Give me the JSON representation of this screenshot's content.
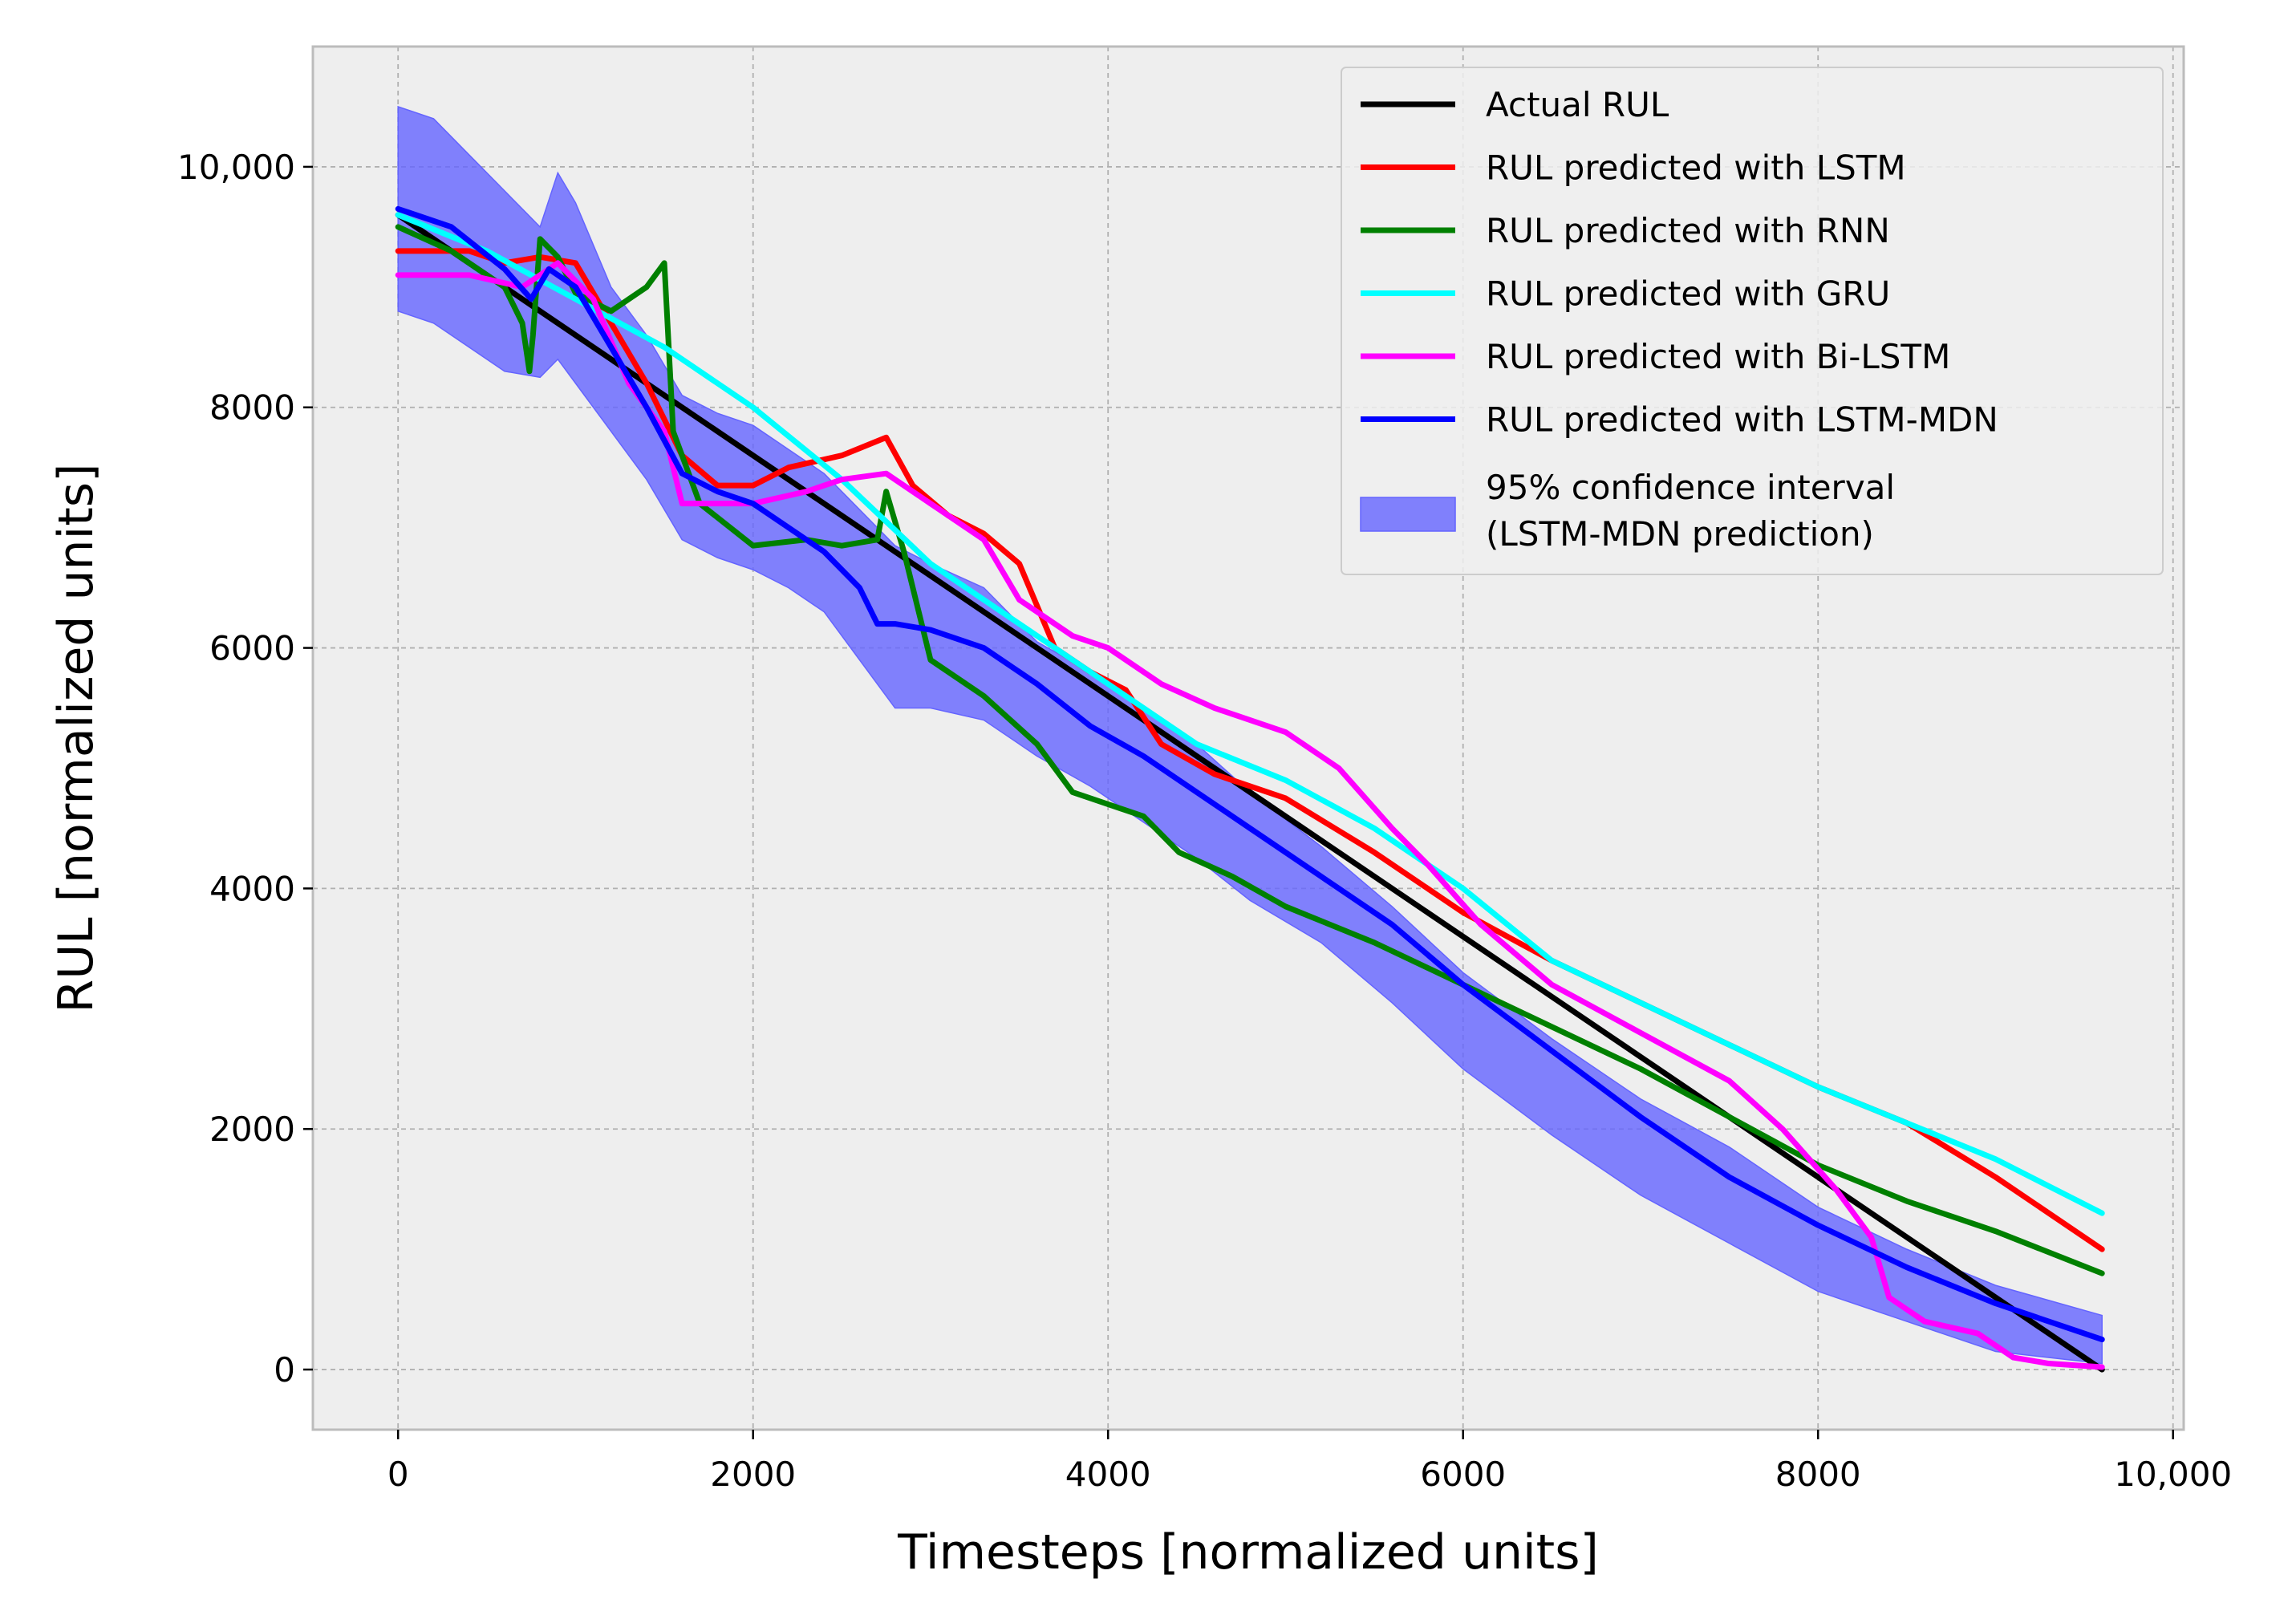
{
  "chart_data": {
    "type": "line",
    "title": "",
    "xlabel": "Timesteps [normalized units]",
    "ylabel": "RUL [normalized units]",
    "xlim": [
      -480,
      10060
    ],
    "ylim": [
      -500,
      11000
    ],
    "grid": true,
    "legend_position": "top-right",
    "x_ticks": [
      0,
      2000,
      4000,
      6000,
      8000,
      10000
    ],
    "x_tick_labels": [
      "0",
      "2000",
      "4000",
      "6000",
      "8000",
      "10,000"
    ],
    "y_ticks": [
      0,
      2000,
      4000,
      6000,
      8000,
      10000
    ],
    "y_tick_labels": [
      "0",
      "2000",
      "4000",
      "6000",
      "8000",
      "10,000"
    ],
    "colors": {
      "background": "#eeeeee",
      "axes_edge": "#bcbcbc",
      "band": "#7a7aff"
    },
    "series": [
      {
        "name": "Actual RUL",
        "color": "#000000",
        "x": [
          0,
          9600
        ],
        "y": [
          9600,
          0
        ]
      },
      {
        "name": "RUL predicted with LSTM",
        "color": "#ff0000",
        "x": [
          0,
          400,
          600,
          800,
          1000,
          1200,
          1400,
          1600,
          1800,
          2000,
          2200,
          2500,
          2750,
          2900,
          3100,
          3300,
          3500,
          3700,
          3900,
          4100,
          4300,
          4600,
          5000,
          5500,
          6000,
          6500,
          7000,
          7500,
          8000,
          8500,
          9000,
          9600
        ],
        "y": [
          9300,
          9300,
          9200,
          9250,
          9200,
          8700,
          8200,
          7600,
          7350,
          7350,
          7500,
          7600,
          7750,
          7350,
          7100,
          6950,
          6700,
          6000,
          5800,
          5650,
          5200,
          4950,
          4750,
          4300,
          3800,
          3400,
          3050,
          2700,
          2350,
          2050,
          1600,
          1000
        ]
      },
      {
        "name": "RUL predicted with RNN",
        "color": "#008000",
        "x": [
          0,
          300,
          600,
          700,
          740,
          760,
          800,
          900,
          1000,
          1200,
          1400,
          1500,
          1550,
          1700,
          2000,
          2300,
          2500,
          2700,
          2750,
          2850,
          3000,
          3300,
          3600,
          3800,
          4000,
          4200,
          4400,
          4700,
          5000,
          5500,
          6000,
          6500,
          7000,
          7500,
          8000,
          8500,
          9000,
          9600
        ],
        "y": [
          9500,
          9300,
          9000,
          8700,
          8300,
          8600,
          9400,
          9250,
          8950,
          8800,
          9000,
          9200,
          7800,
          7200,
          6850,
          6900,
          6850,
          6900,
          7300,
          6800,
          5900,
          5600,
          5200,
          4800,
          4700,
          4600,
          4300,
          4100,
          3850,
          3550,
          3200,
          2850,
          2500,
          2100,
          1700,
          1400,
          1150,
          800
        ]
      },
      {
        "name": "RUL predicted with GRU",
        "color": "#00ffff",
        "x": [
          0,
          500,
          1000,
          1500,
          2000,
          2500,
          3000,
          3500,
          4000,
          4500,
          5000,
          5500,
          6000,
          6500,
          7000,
          7500,
          8000,
          8500,
          9000,
          9600
        ],
        "y": [
          9600,
          9300,
          8900,
          8500,
          8000,
          7400,
          6700,
          6200,
          5700,
          5200,
          4900,
          4500,
          4000,
          3400,
          3050,
          2700,
          2350,
          2050,
          1750,
          1300
        ]
      },
      {
        "name": "RUL predicted with Bi-LSTM",
        "color": "#ff00ff",
        "x": [
          0,
          400,
          700,
          900,
          1100,
          1300,
          1500,
          1600,
          1800,
          2000,
          2300,
          2500,
          2750,
          3000,
          3300,
          3500,
          3800,
          4000,
          4300,
          4600,
          5000,
          5300,
          5600,
          5800,
          6100,
          6500,
          7000,
          7500,
          7800,
          8100,
          8300,
          8400,
          8600,
          8900,
          9100,
          9300,
          9600
        ],
        "y": [
          9100,
          9100,
          9000,
          9200,
          8900,
          8200,
          7800,
          7200,
          7200,
          7200,
          7300,
          7400,
          7450,
          7200,
          6900,
          6400,
          6100,
          6000,
          5700,
          5500,
          5300,
          5000,
          4500,
          4200,
          3700,
          3200,
          2800,
          2400,
          2000,
          1500,
          1100,
          600,
          400,
          300,
          100,
          50,
          20
        ]
      },
      {
        "name": "RUL predicted with LSTM-MDN",
        "color": "#0000ff",
        "x": [
          0,
          300,
          600,
          750,
          850,
          1000,
          1200,
          1400,
          1600,
          1800,
          2000,
          2200,
          2400,
          2600,
          2700,
          2800,
          3000,
          3300,
          3600,
          3900,
          4200,
          4500,
          4800,
          5200,
          5600,
          6000,
          6500,
          7000,
          7500,
          8000,
          8500,
          9000,
          9600
        ],
        "y": [
          9650,
          9500,
          9150,
          8900,
          9150,
          9000,
          8500,
          8000,
          7450,
          7300,
          7200,
          7000,
          6800,
          6500,
          6200,
          6200,
          6150,
          6000,
          5700,
          5350,
          5100,
          4800,
          4500,
          4100,
          3700,
          3200,
          2650,
          2100,
          1600,
          1200,
          850,
          550,
          250
        ]
      }
    ],
    "confidence_band": {
      "name": "95% confidence interval",
      "name_line2": "(LSTM-MDN prediction)",
      "color": "#6464ff",
      "x": [
        0,
        200,
        400,
        600,
        800,
        900,
        1000,
        1200,
        1400,
        1600,
        1800,
        2000,
        2200,
        2400,
        2600,
        2700,
        2800,
        3000,
        3300,
        3600,
        3900,
        4200,
        4500,
        4800,
        5200,
        5600,
        6000,
        6500,
        7000,
        7500,
        8000,
        8500,
        9000,
        9600
      ],
      "upper": [
        10500,
        10400,
        10100,
        9800,
        9500,
        9950,
        9700,
        9000,
        8600,
        8100,
        7950,
        7850,
        7650,
        7450,
        7150,
        7000,
        6850,
        6700,
        6500,
        6050,
        5800,
        5500,
        5200,
        4800,
        4350,
        3850,
        3300,
        2750,
        2250,
        1850,
        1350,
        1000,
        700,
        450
      ],
      "lower": [
        8800,
        8700,
        8500,
        8300,
        8250,
        8400,
        8200,
        7800,
        7400,
        6900,
        6750,
        6650,
        6500,
        6300,
        5900,
        5700,
        5500,
        5500,
        5400,
        5100,
        4850,
        4550,
        4250,
        3900,
        3550,
        3050,
        2500,
        1950,
        1450,
        1050,
        650,
        400,
        150,
        50
      ]
    }
  }
}
